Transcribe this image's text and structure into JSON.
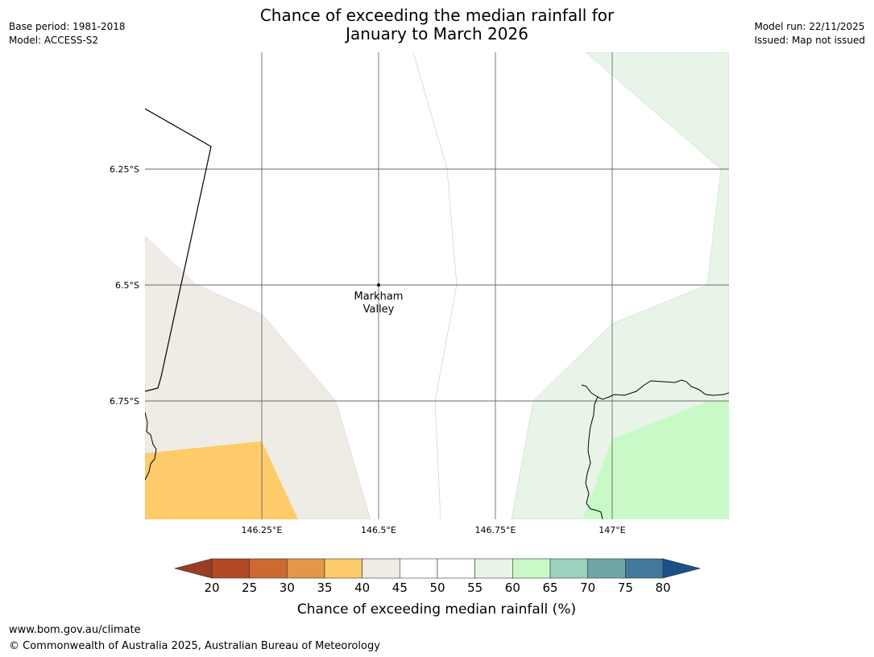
{
  "title": {
    "line1": "Chance of exceeding the median rainfall for",
    "line2": "January to March 2026"
  },
  "meta_left": {
    "base_period": "Base period: 1981-2018",
    "model": "Model: ACCESS-S2"
  },
  "meta_right": {
    "model_run": "Model run: 22/11/2025",
    "issued": "Issued: Map not issued"
  },
  "map": {
    "location_name_line1": "Markham",
    "location_name_line2": "Valley",
    "lat_labels": [
      "6.25°S",
      "6.5°S",
      "6.75°S"
    ],
    "lon_labels": [
      "146.25°E",
      "146.5°E",
      "146.75°E",
      "147°E"
    ]
  },
  "colorbar": {
    "label": "Chance of exceeding median rainfall (%)",
    "ticks": [
      "20",
      "25",
      "30",
      "35",
      "40",
      "45",
      "50",
      "55",
      "60",
      "65",
      "70",
      "75",
      "80"
    ],
    "low_extend_color": "#9a3d24",
    "high_extend_color": "#1a4f88",
    "bin_colors": [
      "#b34a26",
      "#cc6a31",
      "#e39748",
      "#fdcb6a",
      "#efebe5",
      "#ffffff",
      "#ffffff",
      "#e8f4e8",
      "#caf9c8",
      "#9ed1bd",
      "#6fa6a8",
      "#42789a"
    ]
  },
  "footer": {
    "url": "www.bom.gov.au/climate",
    "copyright": "© Commonwealth of Australia 2025, Australian Bureau of Meteorology"
  }
}
